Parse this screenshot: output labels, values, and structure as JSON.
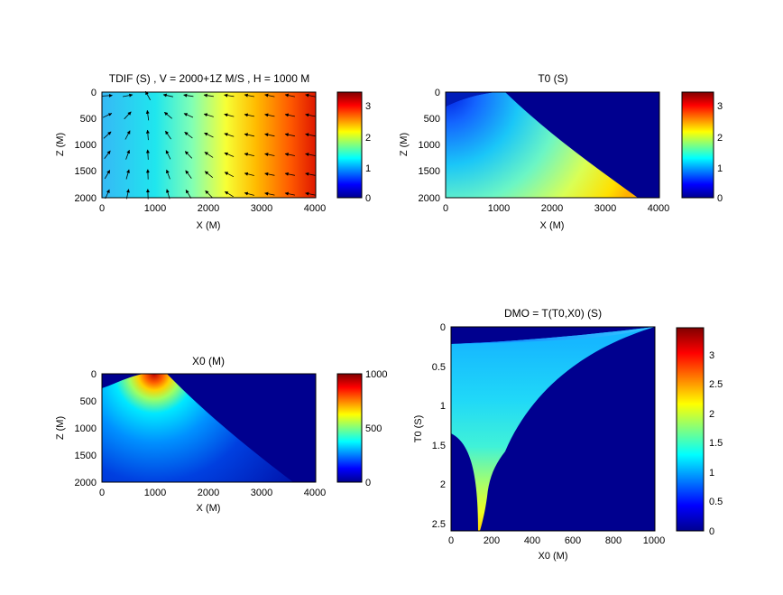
{
  "chart_data": [
    {
      "type": "heatmap",
      "title": "TDIF (S) , V = 2000+1Z M/S , H = 1000 M",
      "xlabel": "X (M)",
      "ylabel": "Z (M)",
      "xlim": [
        0,
        4000
      ],
      "ylim": [
        0,
        2000
      ],
      "y_reversed": true,
      "xticks": [
        "0",
        "1000",
        "2000",
        "3000",
        "4000"
      ],
      "yticks": [
        "0",
        "500",
        "1000",
        "1500",
        "2000"
      ],
      "colorbar": {
        "ticks": [
          "0",
          "1",
          "2",
          "3"
        ],
        "range": [
          0,
          3.4
        ]
      },
      "field": "travel-time difference increasing from about 1.0 s near x=0 to about 3.4 s at x=4000",
      "overlay": "quiver arrows (gradient field)"
    },
    {
      "type": "heatmap",
      "title": "T0 (S)",
      "xlabel": "X (M)",
      "ylabel": "Z (M)",
      "xlim": [
        0,
        4000
      ],
      "ylim": [
        0,
        2000
      ],
      "y_reversed": true,
      "xticks": [
        "0",
        "1000",
        "2000",
        "3000",
        "4000"
      ],
      "yticks": [
        "0",
        "500",
        "1000",
        "1500",
        "2000"
      ],
      "colorbar": {
        "ticks": [
          "0",
          "1",
          "2",
          "3"
        ],
        "range": [
          0,
          3.4
        ]
      },
      "field": "zero-offset time, defined left of a curved boundary from (1000,0) to (3600,2000); values 0 at top-left to about 2.7 at bottom-right"
    },
    {
      "type": "heatmap",
      "title": "X0 (M)",
      "xlabel": "X (M)",
      "ylabel": "Z (M)",
      "xlim": [
        0,
        4000
      ],
      "ylim": [
        0,
        2000
      ],
      "y_reversed": true,
      "xticks": [
        "0",
        "1000",
        "2000",
        "3000",
        "4000"
      ],
      "yticks": [
        "0",
        "500",
        "1000",
        "1500",
        "2000"
      ],
      "colorbar": {
        "ticks": [
          "0",
          "500",
          "1000"
        ],
        "range": [
          0,
          1000
        ]
      },
      "field": "midpoint X0 peaking at 1000 near (1000,0), decaying outward, zero outside curved boundary"
    },
    {
      "type": "heatmap",
      "title": "DMO = T(T0,X0) (S)",
      "xlabel": "X0 (M)",
      "ylabel": "T0 (S)",
      "xlim": [
        0,
        1000
      ],
      "ylim": [
        0,
        2.6
      ],
      "y_reversed": true,
      "xticks": [
        "0",
        "200",
        "400",
        "600",
        "800",
        "1000"
      ],
      "yticks": [
        "0",
        "0.5",
        "1",
        "1.5",
        "2",
        "2.5"
      ],
      "colorbar": {
        "ticks": [
          "0",
          "0.5",
          "1",
          "1.5",
          "2",
          "2.5",
          "3"
        ],
        "range": [
          0,
          3.45
        ]
      },
      "field": "DMO time defined inside a cusp-shaped region from (1000,0) widening toward X0=0; values from about 0.5 to about 2.2 near the cusp tip"
    }
  ]
}
